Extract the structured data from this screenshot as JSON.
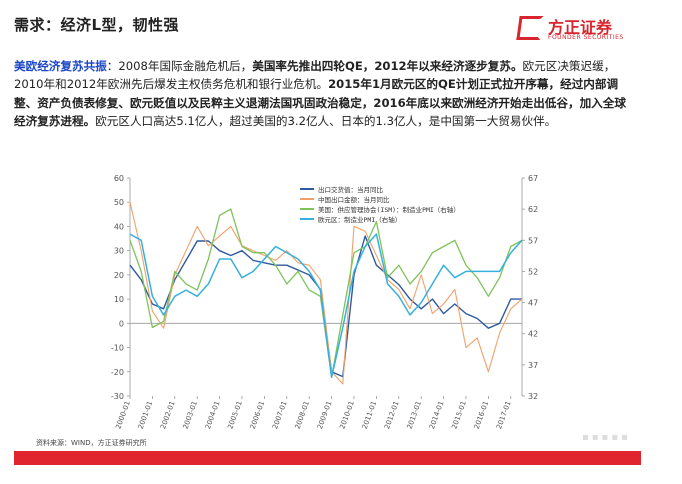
{
  "header": {
    "title": "需求：经济L型，韧性强",
    "logo_name": "方正证券",
    "logo_sub": "FOUNDER SECURITIES"
  },
  "paragraph": {
    "lead": "美欧经济复苏共振",
    "p1": "：2008年国际金融危机后，",
    "p2": "美国率先推出四轮QE，2012年以来经济逐步复苏。",
    "p3": "欧元区决策迟缓，2010年和2012年欧洲先后爆发主权债务危机和银行业危机。",
    "p4": "2015年1月欧元区的QE计划正式拉开序幕，经过内部调整、资产负债表修复、欧元贬值以及民粹主义退潮法国巩固政治稳定，2016年底以来欧洲经济开始走出低谷，加入全球经济复苏进程。",
    "p5": "欧元区人口高达5.1亿人，超过美国的3.2亿人、日本的1.3亿人，是中国第一大贸易伙伴。"
  },
  "source": "资料来源：WIND，方正证券研究所",
  "colors": {
    "accent": "#d9262e",
    "blue_series": "#2e5a9e",
    "orange_series": "#f2a06a",
    "green_series": "#7dc35a",
    "cyan_series": "#36b0dc"
  },
  "chart_data": {
    "type": "line",
    "x": [
      "2000-01",
      "2000-07",
      "2001-01",
      "2001-07",
      "2002-01",
      "2002-07",
      "2003-01",
      "2003-07",
      "2004-01",
      "2004-07",
      "2005-01",
      "2005-07",
      "2006-01",
      "2006-07",
      "2007-01",
      "2007-07",
      "2008-01",
      "2008-07",
      "2009-01",
      "2009-07",
      "2010-01",
      "2010-07",
      "2011-01",
      "2011-07",
      "2012-01",
      "2012-07",
      "2013-01",
      "2013-07",
      "2014-01",
      "2014-07",
      "2015-01",
      "2015-07",
      "2016-01",
      "2016-07",
      "2017-01",
      "2017-07"
    ],
    "x_ticks": [
      "2000-01",
      "2001-01",
      "2002-01",
      "2003-01",
      "2004-01",
      "2005-01",
      "2006-01",
      "2007-01",
      "2008-01",
      "2009-01",
      "2010-01",
      "2011-01",
      "2012-01",
      "2013-01",
      "2014-01",
      "2015-01",
      "2016-01",
      "2017-01"
    ],
    "left_axis": {
      "ylim": [
        -30,
        60
      ],
      "ticks": [
        -30,
        -20,
        -10,
        0,
        10,
        20,
        30,
        40,
        50,
        60
      ]
    },
    "right_axis": {
      "ylim": [
        32,
        67
      ],
      "ticks": [
        32,
        37,
        42,
        47,
        52,
        57,
        62,
        67
      ]
    },
    "legend_position": "top-center",
    "grid": false,
    "series": [
      {
        "name": "出口交货值：当月同比",
        "axis": "left",
        "values": [
          24,
          18,
          8,
          6,
          18,
          26,
          34,
          34,
          30,
          28,
          30,
          26,
          25,
          24,
          24,
          22,
          20,
          14,
          -20,
          -22,
          20,
          36,
          24,
          20,
          16,
          10,
          6,
          10,
          4,
          8,
          4,
          2,
          -2,
          0,
          10,
          10
        ]
      },
      {
        "name": "中国出口金额：当月同比",
        "axis": "left",
        "values": [
          50,
          30,
          5,
          -2,
          20,
          30,
          40,
          32,
          36,
          40,
          32,
          30,
          28,
          26,
          30,
          25,
          24,
          18,
          -20,
          -25,
          40,
          38,
          28,
          18,
          14,
          6,
          20,
          4,
          8,
          14,
          -10,
          -6,
          -20,
          -4,
          6,
          10
        ]
      },
      {
        "name": "美国：供应管理协会(ISM)：制造业PMI（右轴）",
        "axis": "right",
        "values": [
          57,
          52,
          43,
          44,
          52,
          50,
          49,
          54,
          61,
          62,
          56,
          55,
          55,
          53,
          50,
          52,
          49,
          48,
          35,
          45,
          55,
          56,
          60,
          51,
          53,
          50,
          52,
          55,
          56,
          57,
          53,
          51,
          48,
          51,
          56,
          57
        ]
      },
      {
        "name": "欧元区：制造业PMI（右轴）",
        "axis": "right",
        "values": [
          58,
          57,
          48,
          45,
          48,
          49,
          48,
          50,
          54,
          54,
          51,
          52,
          54,
          56,
          55,
          54,
          52,
          49,
          35,
          43,
          52,
          56,
          58,
          50,
          48,
          45,
          47,
          50,
          53,
          51,
          52,
          52,
          52,
          52,
          55,
          57
        ]
      }
    ]
  }
}
